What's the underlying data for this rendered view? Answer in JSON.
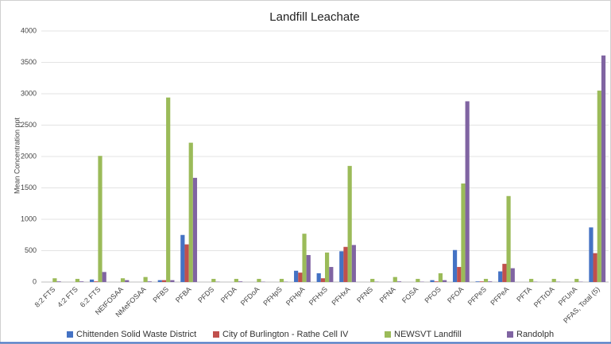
{
  "chart_data": {
    "type": "bar",
    "title": "Landfill Leachate",
    "y_axis_label": "Mean Concentration ppt",
    "categories": [
      "8:2 FTS",
      "4:2 FTS",
      "6:2 FTS",
      "NEtFOSAA",
      "NMeFOSAA",
      "PFBS",
      "PFBA",
      "PFDS",
      "PFDA",
      "PFDoA",
      "PFHpS",
      "PFHpA",
      "PFHxS",
      "PFHxA",
      "PFNS",
      "PFNA",
      "FOSA",
      "PFOS",
      "PFOA",
      "PFPeS",
      "PFPeA",
      "PFTA",
      "PFTrDA",
      "PFUnA",
      "PFAS, Total (5)"
    ],
    "series": [
      {
        "name": "Chittenden Solid Waste District",
        "color": "#4472c4",
        "values": [
          0,
          0,
          40,
          0,
          0,
          30,
          750,
          0,
          0,
          0,
          0,
          180,
          140,
          490,
          0,
          0,
          0,
          30,
          510,
          10,
          170,
          0,
          0,
          0,
          870
        ]
      },
      {
        "name": "City of Burlington - Rathe Cell IV",
        "color": "#c0504d",
        "values": [
          0,
          0,
          10,
          0,
          0,
          30,
          600,
          0,
          0,
          0,
          0,
          150,
          60,
          560,
          0,
          0,
          0,
          10,
          240,
          10,
          290,
          0,
          0,
          0,
          460
        ]
      },
      {
        "name": "NEWSVT Landfill",
        "color": "#9bbb59",
        "values": [
          60,
          50,
          2010,
          60,
          80,
          2940,
          2220,
          50,
          50,
          50,
          50,
          770,
          470,
          1850,
          50,
          80,
          50,
          140,
          1570,
          50,
          1370,
          50,
          50,
          50,
          3050
        ]
      },
      {
        "name": "Randolph",
        "color": "#8064a2",
        "values": [
          10,
          10,
          160,
          30,
          10,
          30,
          1660,
          5,
          10,
          5,
          5,
          430,
          240,
          590,
          5,
          10,
          5,
          30,
          2880,
          10,
          220,
          5,
          5,
          5,
          3610
        ]
      }
    ],
    "ylim": [
      0,
      4000
    ],
    "yticks": [
      0,
      500,
      1000,
      1500,
      2000,
      2500,
      3000,
      3500,
      4000
    ],
    "grid": true,
    "legend": "bottom"
  }
}
